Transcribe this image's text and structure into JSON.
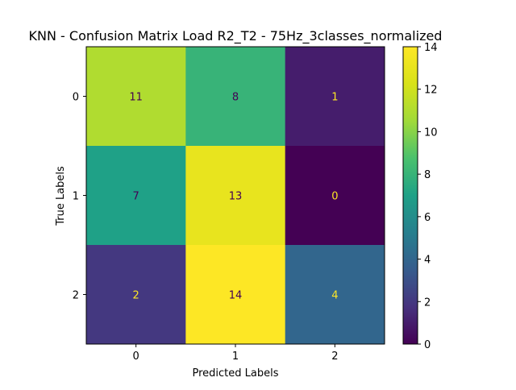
{
  "chart_data": {
    "type": "heatmap",
    "title": "KNN - Confusion Matrix Load R2_T2 - 75Hz_3classes_normalized",
    "xlabel": "Predicted Labels",
    "ylabel": "True Labels",
    "x_categories": [
      "0",
      "1",
      "2"
    ],
    "y_categories": [
      "0",
      "1",
      "2"
    ],
    "matrix": [
      [
        11,
        8,
        1
      ],
      [
        7,
        13,
        0
      ],
      [
        2,
        14,
        4
      ]
    ],
    "colormap": "viridis",
    "colorbar": {
      "range": [
        0,
        14
      ],
      "ticks": [
        0,
        2,
        4,
        6,
        8,
        10,
        12,
        14
      ]
    },
    "grid": false,
    "colors": {
      "light_text": "#fde725",
      "dark_text": "#440154"
    }
  }
}
